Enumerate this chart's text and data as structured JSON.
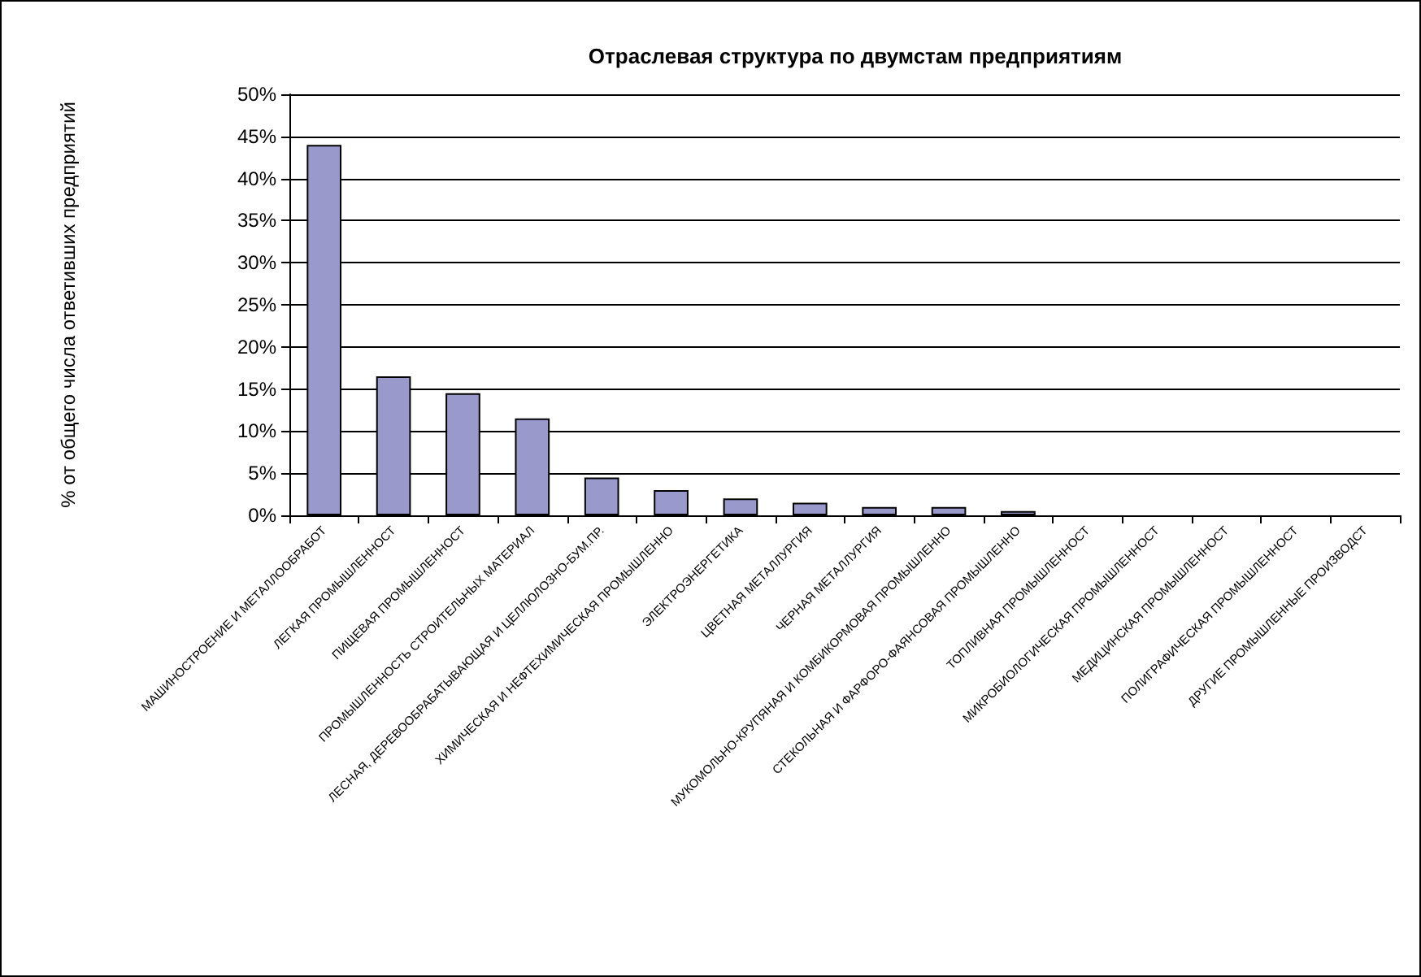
{
  "chart_data": {
    "type": "bar",
    "title": "Отраслевая структура по двумстам предприятиям",
    "ylabel": "% от общего числа ответивших предприятий",
    "categories": [
      "МАШИНОСТРОЕНИЕ И МЕТАЛЛООБРАБОТ",
      "ЛЕГКАЯ ПРОМЫШЛЕННОСТ",
      "ПИЩЕВАЯ ПРОМЫШЛЕННОСТ",
      "ПРОМЫШЛЕННОСТЬ СТРОИТЕЛЬНЫХ МАТЕРИАЛ",
      "ЛЕСНАЯ, ДЕРЕВООБРАБАТЫВАЮЩАЯ И ЦЕЛЛЮЛОЗНО-БУМ.ПР.",
      "ХИМИЧЕСКАЯ И НЕФТЕХИМИЧЕСКАЯ ПРОМЫШЛЕННО",
      "ЭЛЕКТРОЭНЕРГЕТИКА",
      "ЦВЕТНАЯ МЕТАЛЛУРГИЯ",
      "ЧЕРНАЯ МЕТАЛЛУРГИЯ",
      "МУКОМОЛЬНО-КРУПЯНАЯ И КОМБИКОРМОВАЯ ПРОМЫШЛЕННО",
      "СТЕКОЛЬНАЯ И ФАРФОРО-ФАЯНСОВАЯ ПРОМЫШЛЕННО",
      "ТОПЛИВНАЯ ПРОМЫШЛЕННОСТ",
      "МИКРОБИОЛОГИЧЕСКАЯ ПРОМЫШЛЕННОСТ",
      "МЕДИЦИНСКАЯ ПРОМЫШЛЕННОСТ",
      "ПОЛИГРАФИЧЕСКАЯ ПРОМЫШЛЕННОСТ",
      "ДРУГИЕ ПРОМЫШЛЕННЫЕ ПРОИЗВОДСТ"
    ],
    "values": [
      44,
      16.5,
      14.5,
      11.5,
      4.5,
      3,
      2,
      1.5,
      1,
      1,
      0.5,
      0,
      0,
      0,
      0,
      0
    ],
    "color": "#9999cc",
    "ylim": [
      0,
      50
    ],
    "yticks": [
      {
        "value": 0,
        "label": "0%"
      },
      {
        "value": 5,
        "label": "5%"
      },
      {
        "value": 10,
        "label": "10%"
      },
      {
        "value": 15,
        "label": "15%"
      },
      {
        "value": 20,
        "label": "20%"
      },
      {
        "value": 25,
        "label": "25%"
      },
      {
        "value": 30,
        "label": "30%"
      },
      {
        "value": 35,
        "label": "35%"
      },
      {
        "value": 40,
        "label": "40%"
      },
      {
        "value": 45,
        "label": "45%"
      },
      {
        "value": 50,
        "label": "50%"
      }
    ],
    "grid": true
  }
}
